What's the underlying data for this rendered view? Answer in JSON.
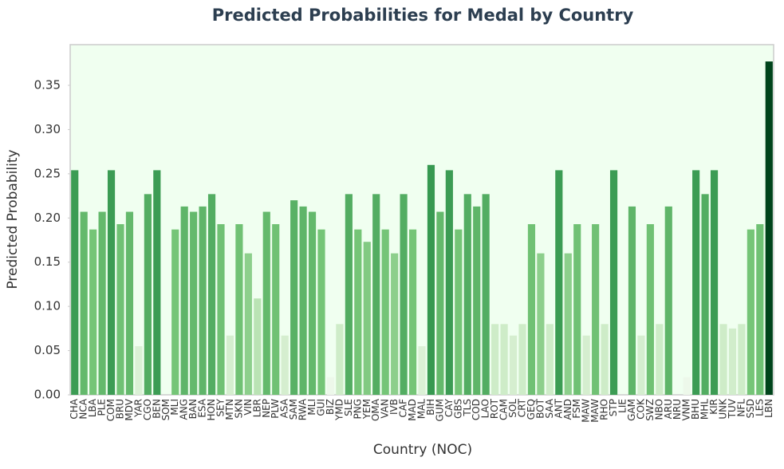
{
  "chart_data": {
    "type": "bar",
    "title": "Predicted Probabilities for Medal by Country",
    "xlabel": "Country (NOC)",
    "ylabel": "Predicted Probability",
    "categories": [
      "CHA",
      "NCA",
      "LBA",
      "PLE",
      "COM",
      "BRU",
      "MDV",
      "YAR",
      "CGO",
      "BEN",
      "SOM",
      "MLI",
      "ANG",
      "BAN",
      "ESA",
      "HON",
      "SEY",
      "MTN",
      "SKN",
      "VIN",
      "LBR",
      "NEP",
      "PLW",
      "ASA",
      "SAM",
      "RWA",
      "MLI",
      "GUI",
      "BIZ",
      "YMD",
      "SLE",
      "PNG",
      "YEM",
      "OMA",
      "VAN",
      "IVB",
      "CAF",
      "MAD",
      "MAL",
      "BIH",
      "GUM",
      "CAY",
      "GBS",
      "TLS",
      "COD",
      "LAO",
      "ROT",
      "CAM",
      "SOL",
      "CRT",
      "GEQ",
      "BOT",
      "SAA",
      "ANT",
      "AND",
      "FSM",
      "MAW",
      "MAW",
      "RHO",
      "STP",
      "LIE",
      "GAM",
      "COK",
      "SWZ",
      "NBO",
      "ARU",
      "NRU",
      "VNM",
      "BHU",
      "MHL",
      "KIR",
      "UNK",
      "TUV",
      "NFL",
      "SSD",
      "LES",
      "LBN"
    ],
    "values": [
      0.254,
      0.207,
      0.187,
      0.207,
      0.254,
      0.193,
      0.207,
      0.055,
      0.227,
      0.254,
      0,
      0.187,
      0.213,
      0.207,
      0.213,
      0.227,
      0.193,
      0.067,
      0.193,
      0.16,
      0.109,
      0.207,
      0.193,
      0.067,
      0.22,
      0.213,
      0.207,
      0.187,
      0.02,
      0.08,
      0.227,
      0.187,
      0.173,
      0.227,
      0.187,
      0.16,
      0.227,
      0.187,
      0.055,
      0.26,
      0.207,
      0.254,
      0.187,
      0.227,
      0.213,
      0.227,
      0.08,
      0.08,
      0.067,
      0.08,
      0.193,
      0.16,
      0.08,
      0.254,
      0.16,
      0.193,
      0.067,
      0.193,
      0.08,
      0.254,
      0,
      0.213,
      0.067,
      0.193,
      0.08,
      0.213,
      0,
      0.02,
      0.254,
      0.227,
      0.254,
      0.08,
      0.075,
      0.08,
      0.187,
      0.193,
      0.377
    ],
    "colormap": [
      "#f7fcf5",
      "#c7e9c0",
      "#74c476",
      "#238b45",
      "#00441b"
    ],
    "ylim": [
      0,
      0.396
    ],
    "yticks": [
      {
        "value": 0,
        "label": "0.00"
      },
      {
        "value": 0.05,
        "label": "0.05"
      },
      {
        "value": 0.1,
        "label": "0.10"
      },
      {
        "value": 0.15,
        "label": "0.15"
      },
      {
        "value": 0.2,
        "label": "0.20"
      },
      {
        "value": 0.25,
        "label": "0.25"
      },
      {
        "value": 0.3,
        "label": "0.30"
      },
      {
        "value": 0.35,
        "label": "0.35"
      }
    ],
    "background": "#f0fff0",
    "grid": false
  }
}
